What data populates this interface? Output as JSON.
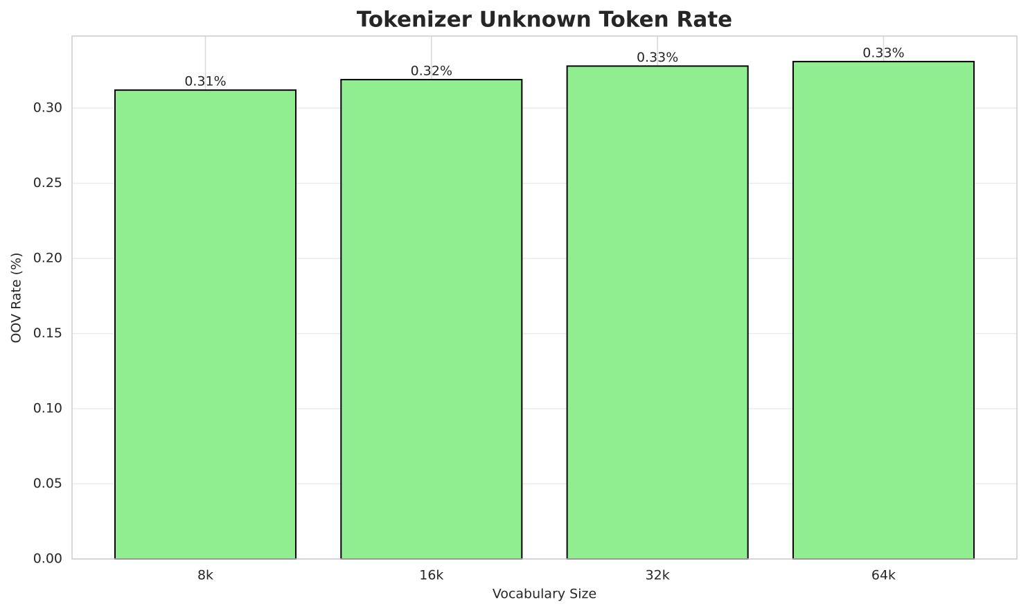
{
  "chart_data": {
    "type": "bar",
    "title": "Tokenizer Unknown Token Rate",
    "x_label": "Vocabulary Size",
    "y_label": "OOV Rate (%)",
    "categories": [
      "8k",
      "16k",
      "32k",
      "64k"
    ],
    "values": [
      0.312,
      0.319,
      0.328,
      0.331
    ],
    "value_labels": [
      "0.31%",
      "0.32%",
      "0.33%",
      "0.33%"
    ],
    "color": "#90ee90",
    "edge_color": "#000000",
    "ylim": [
      0,
      0.348
    ],
    "yticks": [
      {
        "value": 0,
        "label": "0.00"
      },
      {
        "value": 0.05,
        "label": "0.05"
      },
      {
        "value": 0.1,
        "label": "0.10"
      },
      {
        "value": 0.15,
        "label": "0.15"
      },
      {
        "value": 0.2,
        "label": "0.20"
      },
      {
        "value": 0.25,
        "label": "0.25"
      },
      {
        "value": 0.3,
        "label": "0.30"
      }
    ],
    "grid": true
  }
}
